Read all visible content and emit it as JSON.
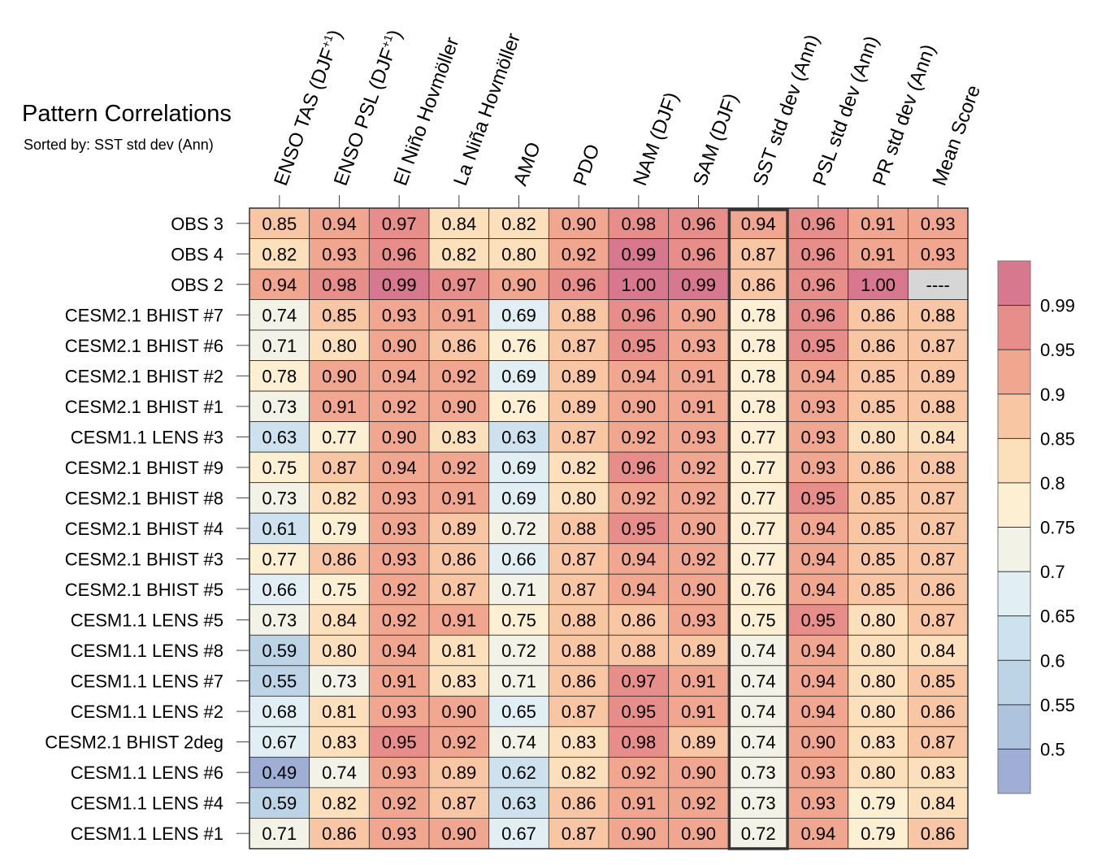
{
  "chart_data": {
    "type": "heatmap",
    "title": "Pattern Correlations",
    "subtitle": "Sorted by: SST std dev (Ann)",
    "columns": [
      "ENSO TAS (DJF+1)",
      "ENSO PSL (DJF+1)",
      "El Niño Hovmöller",
      "La Niña Hovmöller",
      "AMO",
      "PDO",
      "NAM (DJF)",
      "SAM (DJF)",
      "SST std dev (Ann)",
      "PSL std dev (Ann)",
      "PR std dev (Ann)",
      "Mean Score"
    ],
    "column_labels": [
      {
        "base": "ENSO TAS (DJF",
        "sup": "+1",
        "tail": ")"
      },
      {
        "base": "ENSO PSL (DJF",
        "sup": "+1",
        "tail": ")"
      },
      {
        "base": "El Niño Hovmöller",
        "sup": "",
        "tail": ""
      },
      {
        "base": "La Niña Hovmöller",
        "sup": "",
        "tail": ""
      },
      {
        "base": "AMO",
        "sup": "",
        "tail": ""
      },
      {
        "base": "PDO",
        "sup": "",
        "tail": ""
      },
      {
        "base": "NAM (DJF)",
        "sup": "",
        "tail": ""
      },
      {
        "base": "SAM (DJF)",
        "sup": "",
        "tail": ""
      },
      {
        "base": "SST std dev (Ann)",
        "sup": "",
        "tail": ""
      },
      {
        "base": "PSL std dev (Ann)",
        "sup": "",
        "tail": ""
      },
      {
        "base": "PR std dev (Ann)",
        "sup": "",
        "tail": ""
      },
      {
        "base": "Mean Score",
        "sup": "",
        "tail": ""
      }
    ],
    "highlighted_column": "SST std dev (Ann)",
    "missing_label": "----",
    "rows": [
      {
        "name": "OBS 3",
        "values": [
          0.85,
          0.94,
          0.97,
          0.84,
          0.82,
          0.9,
          0.98,
          0.96,
          0.94,
          0.96,
          0.91,
          0.93
        ]
      },
      {
        "name": "OBS 4",
        "values": [
          0.82,
          0.93,
          0.96,
          0.82,
          0.8,
          0.92,
          0.99,
          0.96,
          0.87,
          0.96,
          0.91,
          0.93
        ]
      },
      {
        "name": "OBS 2",
        "values": [
          0.94,
          0.98,
          0.99,
          0.97,
          0.9,
          0.96,
          1.0,
          0.99,
          0.86,
          0.96,
          1.0,
          null
        ]
      },
      {
        "name": "CESM2.1 BHIST #7",
        "values": [
          0.74,
          0.85,
          0.93,
          0.91,
          0.69,
          0.88,
          0.96,
          0.9,
          0.78,
          0.96,
          0.86,
          0.88
        ]
      },
      {
        "name": "CESM2.1 BHIST #6",
        "values": [
          0.71,
          0.8,
          0.9,
          0.86,
          0.76,
          0.87,
          0.95,
          0.93,
          0.78,
          0.95,
          0.86,
          0.87
        ]
      },
      {
        "name": "CESM2.1 BHIST #2",
        "values": [
          0.78,
          0.9,
          0.94,
          0.92,
          0.69,
          0.89,
          0.94,
          0.91,
          0.78,
          0.94,
          0.85,
          0.89
        ]
      },
      {
        "name": "CESM2.1 BHIST #1",
        "values": [
          0.73,
          0.91,
          0.92,
          0.9,
          0.76,
          0.89,
          0.9,
          0.91,
          0.78,
          0.93,
          0.85,
          0.88
        ]
      },
      {
        "name": "CESM1.1 LENS #3",
        "values": [
          0.63,
          0.77,
          0.9,
          0.83,
          0.63,
          0.87,
          0.92,
          0.93,
          0.77,
          0.93,
          0.8,
          0.84
        ]
      },
      {
        "name": "CESM2.1 BHIST #9",
        "values": [
          0.75,
          0.87,
          0.94,
          0.92,
          0.69,
          0.82,
          0.96,
          0.92,
          0.77,
          0.93,
          0.86,
          0.88
        ]
      },
      {
        "name": "CESM2.1 BHIST #8",
        "values": [
          0.73,
          0.82,
          0.93,
          0.91,
          0.69,
          0.8,
          0.92,
          0.92,
          0.77,
          0.95,
          0.85,
          0.87
        ]
      },
      {
        "name": "CESM2.1 BHIST #4",
        "values": [
          0.61,
          0.79,
          0.93,
          0.89,
          0.72,
          0.88,
          0.95,
          0.9,
          0.77,
          0.94,
          0.85,
          0.87
        ]
      },
      {
        "name": "CESM2.1 BHIST #3",
        "values": [
          0.77,
          0.86,
          0.93,
          0.86,
          0.66,
          0.87,
          0.94,
          0.92,
          0.77,
          0.94,
          0.85,
          0.87
        ]
      },
      {
        "name": "CESM2.1 BHIST #5",
        "values": [
          0.66,
          0.75,
          0.92,
          0.87,
          0.71,
          0.87,
          0.94,
          0.9,
          0.76,
          0.94,
          0.85,
          0.86
        ]
      },
      {
        "name": "CESM1.1 LENS #5",
        "values": [
          0.73,
          0.84,
          0.92,
          0.91,
          0.75,
          0.88,
          0.86,
          0.93,
          0.75,
          0.95,
          0.8,
          0.87
        ]
      },
      {
        "name": "CESM1.1 LENS #8",
        "values": [
          0.59,
          0.8,
          0.94,
          0.81,
          0.72,
          0.88,
          0.88,
          0.89,
          0.74,
          0.94,
          0.8,
          0.84
        ]
      },
      {
        "name": "CESM1.1 LENS #7",
        "values": [
          0.55,
          0.73,
          0.91,
          0.83,
          0.71,
          0.86,
          0.97,
          0.91,
          0.74,
          0.94,
          0.8,
          0.85
        ]
      },
      {
        "name": "CESM1.1 LENS #2",
        "values": [
          0.68,
          0.81,
          0.93,
          0.9,
          0.65,
          0.87,
          0.95,
          0.91,
          0.74,
          0.94,
          0.8,
          0.86
        ]
      },
      {
        "name": "CESM2.1 BHIST 2deg",
        "values": [
          0.67,
          0.83,
          0.95,
          0.92,
          0.74,
          0.83,
          0.98,
          0.89,
          0.74,
          0.9,
          0.83,
          0.87
        ]
      },
      {
        "name": "CESM1.1 LENS #6",
        "values": [
          0.49,
          0.74,
          0.93,
          0.89,
          0.62,
          0.82,
          0.92,
          0.9,
          0.73,
          0.93,
          0.8,
          0.83
        ]
      },
      {
        "name": "CESM1.1 LENS #4",
        "values": [
          0.59,
          0.82,
          0.92,
          0.87,
          0.63,
          0.86,
          0.91,
          0.92,
          0.73,
          0.93,
          0.79,
          0.84
        ]
      },
      {
        "name": "CESM1.1 LENS #1",
        "values": [
          0.71,
          0.86,
          0.93,
          0.9,
          0.67,
          0.87,
          0.9,
          0.9,
          0.72,
          0.94,
          0.79,
          0.86
        ]
      }
    ],
    "colorbar": {
      "boundaries": [
        0.5,
        0.55,
        0.6,
        0.65,
        0.7,
        0.75,
        0.8,
        0.85,
        0.9,
        0.95,
        0.99
      ],
      "tick_labels": [
        "0.5",
        "0.55",
        "0.6",
        "0.65",
        "0.7",
        "0.75",
        "0.8",
        "0.85",
        "0.9",
        "0.95",
        "0.99"
      ],
      "colors": [
        "#9eaed4",
        "#adc3de",
        "#bcd4e6",
        "#cde2ee",
        "#e1eff5",
        "#f3f2e7",
        "#fdefd2",
        "#fce0bb",
        "#f9c6a4",
        "#f0a68f",
        "#e78d8a",
        "#d8788f"
      ]
    },
    "missing_color": "#d6d6d6"
  }
}
